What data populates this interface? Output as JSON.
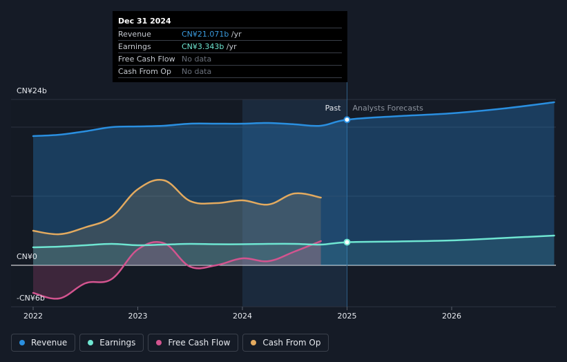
{
  "tooltip": {
    "date": "Dec 31 2024",
    "rows": [
      {
        "name": "Revenue",
        "value": "CN¥21.071b",
        "unit": " /yr",
        "color": "#3a9bde"
      },
      {
        "name": "Earnings",
        "value": "CN¥3.343b",
        "unit": " /yr",
        "color": "#6fe6d2"
      },
      {
        "name": "Free Cash Flow",
        "value": "No data",
        "unit": "",
        "color": "#6b717c"
      },
      {
        "name": "Cash From Op",
        "value": "No data",
        "unit": "",
        "color": "#6b717c"
      }
    ]
  },
  "legend": [
    {
      "label": "Revenue",
      "color": "#2a8fe0"
    },
    {
      "label": "Earnings",
      "color": "#6fe6d2"
    },
    {
      "label": "Free Cash Flow",
      "color": "#d3548f"
    },
    {
      "label": "Cash From Op",
      "color": "#e3aa5f"
    }
  ],
  "chart_data": {
    "type": "line",
    "y_unit": "CN¥ billions",
    "ylim": [
      -6,
      24
    ],
    "xlim": [
      2021.8,
      2026.98
    ],
    "y_tick_labels": [
      {
        "value": 24,
        "label": "CN¥24b"
      },
      {
        "value": 0,
        "label": "CN¥0"
      },
      {
        "value": -6,
        "label": "-CN¥6b"
      }
    ],
    "x_ticks": [
      {
        "value": 2022,
        "label": "2022"
      },
      {
        "value": 2023,
        "label": "2023"
      },
      {
        "value": 2024,
        "label": "2024"
      },
      {
        "value": 2025,
        "label": "2025"
      },
      {
        "value": 2026,
        "label": "2026"
      }
    ],
    "gridlines": [
      24,
      20,
      10,
      0,
      -6
    ],
    "divider_x": 2025.0,
    "highlight_range": [
      2024.0,
      2025.0
    ],
    "past_label": "Past",
    "forecast_label": "Analysts Forecasts",
    "series": [
      {
        "name": "Revenue",
        "color": "#2a8fe0",
        "fill": true,
        "marker_at": 2025.0,
        "points": [
          [
            2022.0,
            18.7
          ],
          [
            2022.25,
            18.9
          ],
          [
            2022.5,
            19.4
          ],
          [
            2022.75,
            20.0
          ],
          [
            2023.0,
            20.1
          ],
          [
            2023.25,
            20.2
          ],
          [
            2023.5,
            20.5
          ],
          [
            2023.75,
            20.5
          ],
          [
            2024.0,
            20.5
          ],
          [
            2024.25,
            20.6
          ],
          [
            2024.5,
            20.4
          ],
          [
            2024.75,
            20.2
          ],
          [
            2025.0,
            21.071
          ],
          [
            2025.5,
            21.6
          ],
          [
            2026.0,
            22.0
          ],
          [
            2026.5,
            22.7
          ],
          [
            2026.98,
            23.6
          ]
        ]
      },
      {
        "name": "Earnings",
        "color": "#6fe6d2",
        "fill": true,
        "marker_at": 2025.0,
        "points": [
          [
            2022.0,
            2.6
          ],
          [
            2022.25,
            2.7
          ],
          [
            2022.5,
            2.9
          ],
          [
            2022.75,
            3.1
          ],
          [
            2023.0,
            2.9
          ],
          [
            2023.25,
            3.0
          ],
          [
            2023.5,
            3.1
          ],
          [
            2023.75,
            3.05
          ],
          [
            2024.0,
            3.05
          ],
          [
            2024.25,
            3.1
          ],
          [
            2024.5,
            3.1
          ],
          [
            2024.75,
            3.0
          ],
          [
            2025.0,
            3.343
          ],
          [
            2025.5,
            3.45
          ],
          [
            2026.0,
            3.6
          ],
          [
            2026.5,
            3.95
          ],
          [
            2026.98,
            4.3
          ]
        ]
      },
      {
        "name": "Free Cash Flow",
        "color": "#d3548f",
        "fill": true,
        "points": [
          [
            2022.0,
            -4.0
          ],
          [
            2022.25,
            -4.8
          ],
          [
            2022.5,
            -2.6
          ],
          [
            2022.75,
            -2.0
          ],
          [
            2023.0,
            2.3
          ],
          [
            2023.25,
            3.2
          ],
          [
            2023.5,
            -0.2
          ],
          [
            2023.75,
            0.0
          ],
          [
            2024.0,
            1.0
          ],
          [
            2024.25,
            0.6
          ],
          [
            2024.5,
            2.0
          ],
          [
            2024.75,
            3.5
          ]
        ]
      },
      {
        "name": "Cash From Op",
        "color": "#e3aa5f",
        "fill": true,
        "points": [
          [
            2022.0,
            5.0
          ],
          [
            2022.25,
            4.5
          ],
          [
            2022.5,
            5.5
          ],
          [
            2022.75,
            7.0
          ],
          [
            2023.0,
            11.0
          ],
          [
            2023.25,
            12.3
          ],
          [
            2023.5,
            9.3
          ],
          [
            2023.75,
            9.0
          ],
          [
            2024.0,
            9.4
          ],
          [
            2024.25,
            8.8
          ],
          [
            2024.5,
            10.4
          ],
          [
            2024.75,
            9.8
          ]
        ]
      }
    ]
  }
}
